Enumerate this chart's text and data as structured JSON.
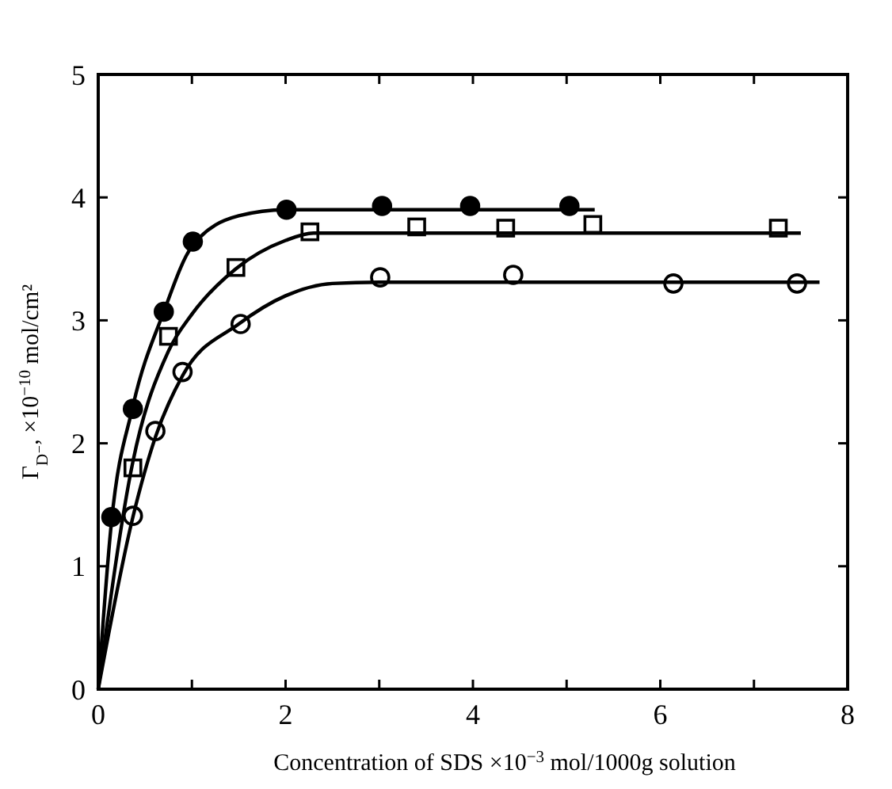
{
  "chart_data": {
    "type": "scatter",
    "xlabel": "Concentration of SDS  ×10$^{−3}$ mol/1000g solution",
    "ylabel": "Γ$_{D⁻}$, ×10$^{−10}$ mol/cm²",
    "xlim": [
      0,
      8
    ],
    "ylim": [
      0,
      5
    ],
    "xticks": [
      0,
      {
        "value": 1,
        "label": null
      },
      2,
      {
        "value": 3,
        "label": null
      },
      4,
      {
        "value": 5,
        "label": null
      },
      6,
      {
        "value": 7,
        "label": null
      },
      8
    ],
    "yticks": [
      0,
      1,
      2,
      3,
      4,
      5
    ],
    "grid": false,
    "series": [
      {
        "marker": "circle",
        "color": "#000000",
        "x": [
          0.14,
          0.37,
          0.7,
          1.01,
          2.01,
          3.03,
          3.97,
          5.03
        ],
        "values": [
          1.4,
          2.28,
          3.07,
          3.64,
          3.9,
          3.93,
          3.93,
          3.93
        ]
      },
      {
        "marker": "square",
        "color": "#ffffff",
        "x": [
          0.37,
          0.75,
          1.47,
          2.26,
          3.4,
          4.35,
          5.28,
          7.26
        ],
        "values": [
          1.8,
          2.87,
          3.43,
          3.72,
          3.76,
          3.75,
          3.78,
          3.75
        ]
      },
      {
        "marker": "circle",
        "color": "#ffffff",
        "x": [
          0.37,
          0.61,
          0.9,
          1.52,
          3.01,
          4.43,
          6.14,
          7.46
        ],
        "values": [
          1.41,
          2.1,
          2.58,
          2.97,
          3.35,
          3.37,
          3.3,
          3.3
        ]
      },
      {
        "type": "line",
        "color": "#000000",
        "x": [
          0,
          0.14,
          0.37,
          0.7,
          1.0,
          1.5,
          2.0,
          5.3
        ],
        "values": [
          0,
          1.35,
          2.3,
          3.07,
          3.6,
          3.85,
          3.9,
          3.9
        ]
      },
      {
        "type": "line",
        "color": "#000000",
        "x": [
          0,
          0.37,
          0.75,
          1.0,
          1.47,
          2.0,
          2.3,
          7.5
        ],
        "values": [
          0,
          1.85,
          2.75,
          3.05,
          3.42,
          3.65,
          3.71,
          3.71
        ]
      },
      {
        "type": "line",
        "color": "#000000",
        "x": [
          0,
          0.37,
          0.61,
          0.9,
          1.5,
          2.0,
          2.5,
          3.0,
          7.7
        ],
        "values": [
          0,
          1.4,
          2.05,
          2.55,
          2.97,
          3.2,
          3.3,
          3.31,
          3.31
        ]
      }
    ]
  }
}
